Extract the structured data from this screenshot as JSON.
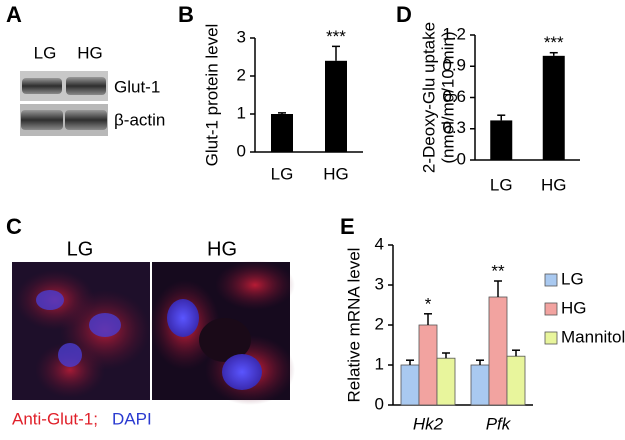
{
  "panel_labels": [
    "A",
    "B",
    "C",
    "D",
    "E"
  ],
  "blot": {
    "lanes": [
      "LG",
      "HG"
    ],
    "bands": [
      "Glut-1",
      "β-actin"
    ]
  },
  "micrograph": {
    "panels": [
      "LG",
      "HG"
    ],
    "caption_red": "Anti-Glut-1;",
    "caption_blue": "DAPI"
  },
  "chart_data": [
    {
      "type": "bar",
      "ylabel": "Glut-1 protein level",
      "categories": [
        "LG",
        "HG"
      ],
      "values": [
        1,
        2.4
      ],
      "errors": [
        0.03,
        0.38
      ],
      "significance": [
        null,
        "***"
      ],
      "color": "#000000",
      "ylim": [
        0,
        3
      ],
      "yticks": [
        0,
        1,
        2,
        3
      ]
    },
    {
      "type": "bar",
      "ylabel": [
        "2-Deoxy-Glu uptake",
        "(nmol/mg/10 min)"
      ],
      "categories": [
        "LG",
        "HG"
      ],
      "values": [
        0.38,
        1.0
      ],
      "errors": [
        0.05,
        0.03
      ],
      "significance": [
        null,
        "***"
      ],
      "color": "#000000",
      "ylim": [
        0,
        1.2
      ],
      "yticks": [
        0,
        0.3,
        0.6,
        0.9,
        1.2
      ]
    },
    {
      "type": "bar",
      "ylabel": "Relative mRNA level",
      "categories": [
        "Hk2",
        "Pfk"
      ],
      "significance": [
        "*",
        "**"
      ],
      "series": [
        {
          "name": "LG",
          "color": "#a9c9f0",
          "values": [
            1,
            1
          ],
          "errors": [
            0.12,
            0.12
          ]
        },
        {
          "name": "HG",
          "color": "#f2a3a0",
          "values": [
            2.0,
            2.7
          ],
          "errors": [
            0.28,
            0.4
          ]
        },
        {
          "name": "Mannitol",
          "color": "#e8f59c",
          "values": [
            1.17,
            1.22
          ],
          "errors": [
            0.13,
            0.15
          ]
        }
      ],
      "ylim": [
        0,
        4
      ],
      "yticks": [
        0,
        1,
        2,
        3,
        4
      ]
    }
  ]
}
